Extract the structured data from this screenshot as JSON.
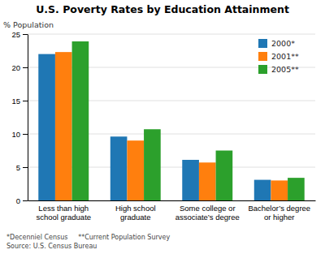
{
  "chart_data": {
    "type": "bar",
    "title": "U.S. Poverty Rates by Education Attainment",
    "ylabel": "% Population",
    "annotations": [
      "*Decenniel Census     **Current Population Survey",
      "Source: U.S. Census Bureau"
    ],
    "categories": [
      "Less than high\nschool graduate",
      "High school\ngraduate",
      "Some college or\nassociate’s degree",
      "Bachelor’s degree\nor higher"
    ],
    "series": [
      {
        "name": "2000*",
        "values": [
          22.0,
          9.6,
          6.1,
          3.1
        ]
      },
      {
        "name": "2001**",
        "values": [
          22.3,
          9.0,
          5.7,
          3.0
        ]
      },
      {
        "name": "2005**",
        "values": [
          23.9,
          10.7,
          7.5,
          3.4
        ]
      }
    ],
    "ylim": [
      0,
      25
    ],
    "yticks": [
      0,
      5,
      10,
      15,
      20,
      25
    ],
    "grid": true,
    "legend": "upper right"
  }
}
